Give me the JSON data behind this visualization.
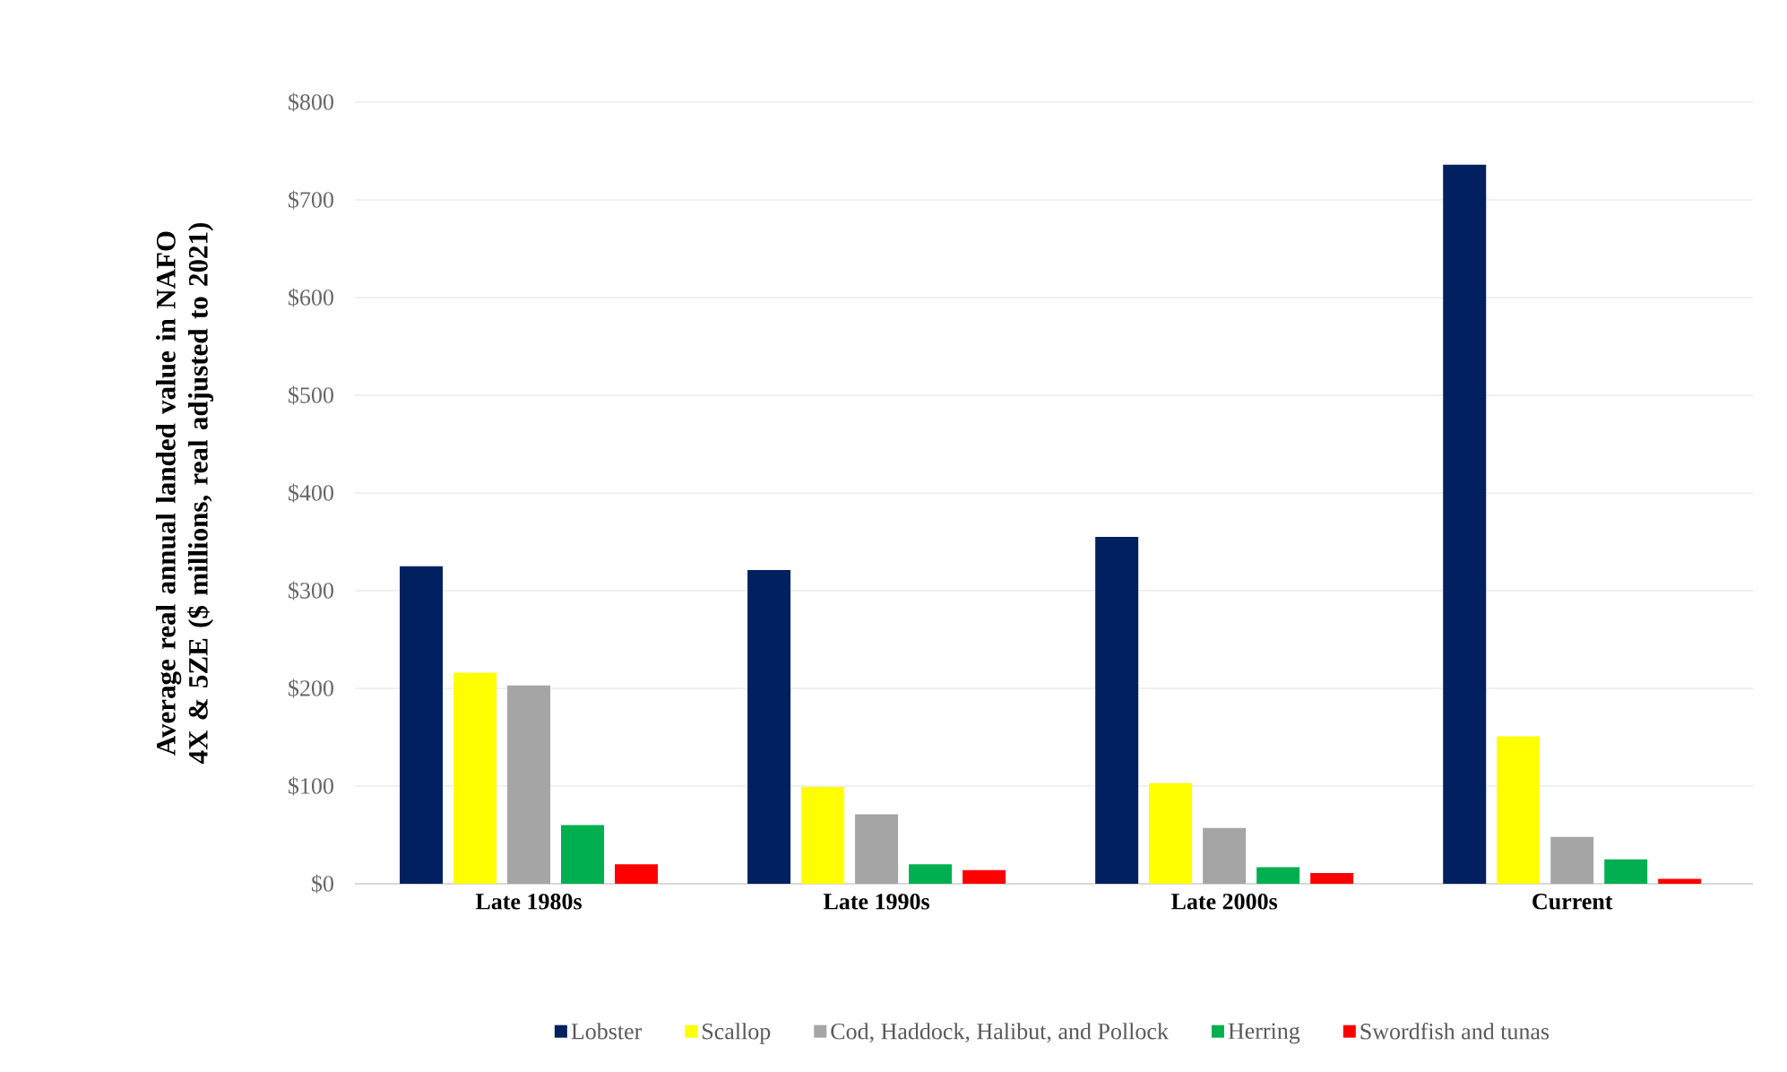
{
  "chart_data": {
    "type": "bar",
    "ylabel": "Average real annual landed value in NAFO 4X & 5ZE ($ millions,  real adjusted to 2021)",
    "categories": [
      "Late 1980s",
      "Late 1990s",
      "Late 2000s",
      "Current"
    ],
    "series": [
      {
        "name": "Lobster",
        "color": "#002060",
        "values": [
          325,
          321,
          355,
          736
        ]
      },
      {
        "name": "Scallop",
        "color": "#ffff00",
        "values": [
          216,
          99,
          103,
          151
        ]
      },
      {
        "name": "Cod, Haddock, Halibut, and Pollock",
        "color": "#a5a5a5",
        "values": [
          203,
          71,
          57,
          48
        ]
      },
      {
        "name": "Herring",
        "color": "#00b050",
        "values": [
          60,
          20,
          17,
          25
        ]
      },
      {
        "name": "Swordfish and tunas",
        "color": "#ff0000",
        "values": [
          20,
          14,
          11,
          5
        ]
      }
    ],
    "ylim": [
      0,
      800
    ],
    "yticks": [
      {
        "value": 0,
        "label": "$0"
      },
      {
        "value": 100,
        "label": "$100"
      },
      {
        "value": 200,
        "label": "$200"
      },
      {
        "value": 300,
        "label": "$300"
      },
      {
        "value": 400,
        "label": "$400"
      },
      {
        "value": 500,
        "label": "$500"
      },
      {
        "value": 600,
        "label": "$600"
      },
      {
        "value": 700,
        "label": "$700"
      },
      {
        "value": 800,
        "label": "$800"
      }
    ],
    "grid": "y",
    "legend": "bottom"
  }
}
